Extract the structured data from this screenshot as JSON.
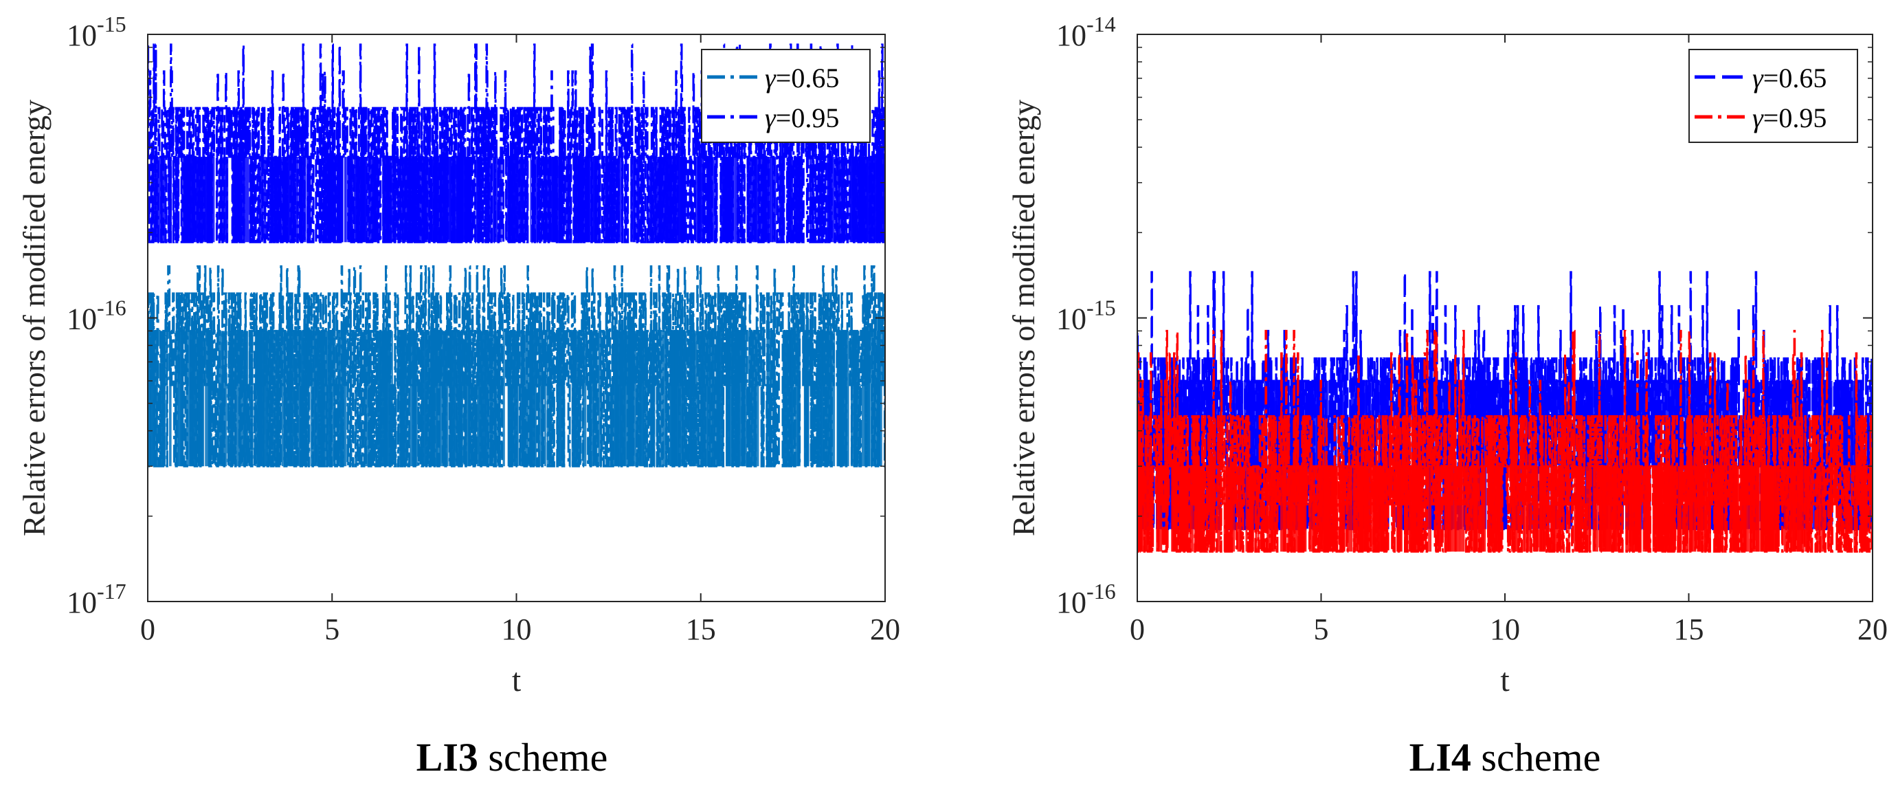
{
  "chart_data": [
    {
      "type": "line",
      "ylog": true,
      "xlim": [
        0,
        20
      ],
      "ylim": [
        1e-17,
        1e-15
      ],
      "xticks": [
        0,
        5,
        10,
        15,
        20
      ],
      "yticks": [
        {
          "value": 1e-17,
          "base": "10",
          "exp": "-17"
        },
        {
          "value": 1e-16,
          "base": "10",
          "exp": "-16"
        },
        {
          "value": 1e-15,
          "base": "10",
          "exp": "-15"
        }
      ],
      "xlabel": "t",
      "ylabel": "Relative errors of modified energy",
      "caption_bold": "LI3",
      "caption_rest": " scheme",
      "series": [
        {
          "name": "γ=0.65",
          "symbol": "γ",
          "rest": "=0.65",
          "color": "#0072BD",
          "linestyle": "dashdot",
          "levels": [
            3e-17,
            5.8e-17,
            9e-17,
            1.22e-16,
            1.52e-16
          ],
          "bandLow": 3e-17,
          "bandHigh": 1.22e-16,
          "spikeMax": 1.8e-16
        },
        {
          "name": "γ=0.95",
          "symbol": "γ",
          "rest": "=0.95",
          "color": "#0000FF",
          "linestyle": "dashdot",
          "levels": [
            1.85e-16,
            3.7e-16,
            5.5e-16,
            7.4e-16,
            9.2e-16
          ],
          "bandLow": 1.85e-16,
          "bandHigh": 5.5e-16,
          "spikeMax": 9.3e-16
        }
      ],
      "legend_position": "top-right"
    },
    {
      "type": "line",
      "ylog": true,
      "xlim": [
        0,
        20
      ],
      "ylim": [
        1e-16,
        1e-14
      ],
      "xticks": [
        0,
        5,
        10,
        15,
        20
      ],
      "yticks": [
        {
          "value": 1e-16,
          "base": "10",
          "exp": "-16"
        },
        {
          "value": 1e-15,
          "base": "10",
          "exp": "-15"
        },
        {
          "value": 1e-14,
          "base": "10",
          "exp": "-14"
        }
      ],
      "xlabel": "t",
      "ylabel": "Relative errors of modified energy",
      "caption_bold": "LI4",
      "caption_rest": " scheme",
      "series": [
        {
          "name": "γ=0.65",
          "symbol": "γ",
          "rest": "=0.65",
          "color": "#0000FF",
          "linestyle": "dashed",
          "levels": [
            1.8e-16,
            3e-16,
            4.5e-16,
            6e-16,
            7.2e-16,
            9e-16,
            1.1e-15,
            1.45e-15
          ],
          "bandLow": 1.8e-16,
          "bandHigh": 7.2e-16,
          "spikeMax": 1.45e-15
        },
        {
          "name": "γ=0.95",
          "symbol": "γ",
          "rest": "=0.95",
          "color": "#FF0000",
          "linestyle": "dashdot",
          "levels": [
            1.5e-16,
            2.2e-16,
            3e-16,
            4.5e-16,
            6e-16,
            7.5e-16,
            9e-16
          ],
          "bandLow": 1.5e-16,
          "bandHigh": 4.5e-16,
          "spikeMax": 9e-16
        }
      ],
      "legend_position": "top-right"
    }
  ]
}
